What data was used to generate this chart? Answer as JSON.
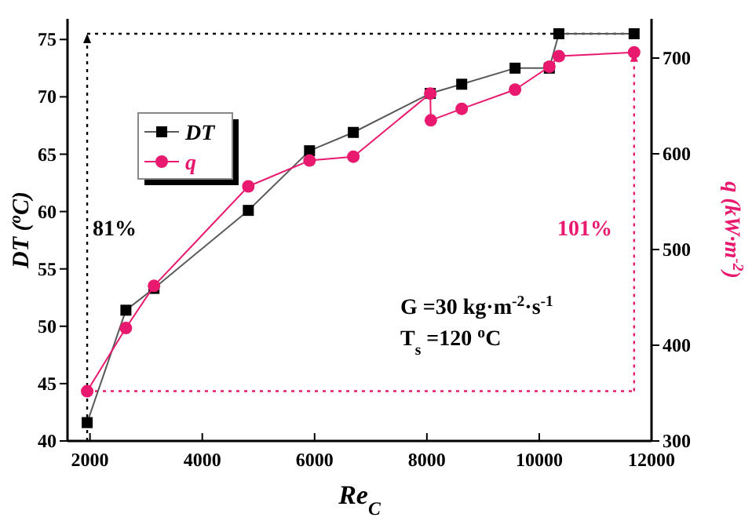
{
  "chart_data": {
    "type": "line",
    "xlabel": "Re$_{C}$",
    "ylabel": "DT ($^{o}$C)",
    "y2label": "q (kW·m$^{-2}$)",
    "xlim": [
      1600,
      12000
    ],
    "xticks": [
      2000,
      4000,
      6000,
      8000,
      10000,
      12000
    ],
    "ylim": [
      40,
      76.8
    ],
    "yticks": [
      40,
      45,
      50,
      55,
      60,
      65,
      70,
      75
    ],
    "y2lim": [
      300,
      741
    ],
    "y2ticks": [
      300,
      400,
      500,
      600,
      700
    ],
    "series": [
      {
        "name": "DT",
        "color": "#000000",
        "marker": "square",
        "x": [
          1950,
          2640,
          3140,
          4820,
          5910,
          6690,
          8060,
          8620,
          9570,
          10180,
          10350,
          11690
        ],
        "values": [
          41.6,
          51.4,
          53.3,
          60.1,
          65.3,
          66.9,
          70.3,
          71.1,
          72.5,
          72.5,
          75.5,
          75.5
        ]
      },
      {
        "name": "q",
        "color": "#e8196e",
        "marker": "circle",
        "axis": "y2",
        "x": [
          1950,
          2640,
          3140,
          4820,
          5910,
          6690,
          8060,
          8070,
          8620,
          9570,
          10180,
          10350,
          11690
        ],
        "values": [
          352,
          418,
          462,
          566,
          593,
          597,
          663,
          635,
          647,
          667,
          691,
          702,
          706
        ]
      }
    ],
    "annotations": [
      "81%",
      "101%",
      "G =30 kg·m$^{-2}$·s$^{-1}$",
      "T$_{s}$ =120 $^{o}$C"
    ],
    "ref_lines": [
      {
        "axis": "x",
        "value": 1950,
        "color": "#000000",
        "line_style": "dotted"
      },
      {
        "axis": "y",
        "value": 75.5,
        "color": "#000000",
        "line_style": "dotted"
      },
      {
        "axis": "y2",
        "value": 352,
        "color": "#e8196e",
        "line_style": "dotted"
      },
      {
        "axis": "x",
        "value": 11690,
        "color": "#e8196e",
        "line_style": "dotted"
      }
    ],
    "legend": "top left",
    "grid": false,
    "line_style": "solid"
  }
}
